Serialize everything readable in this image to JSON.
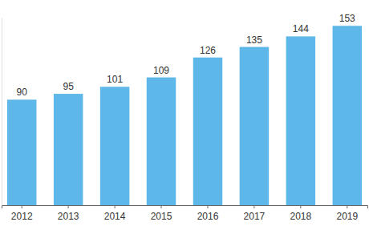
{
  "chart_data": {
    "type": "bar",
    "categories": [
      "2012",
      "2013",
      "2014",
      "2015",
      "2016",
      "2017",
      "2018",
      "2019"
    ],
    "values": [
      90,
      95,
      101,
      109,
      126,
      135,
      144,
      153
    ],
    "color": "#5db7e8",
    "ylim": [
      0,
      160
    ],
    "yticks": [
      0
    ],
    "grid": false,
    "data_labels": true,
    "tick_labels": "x"
  }
}
